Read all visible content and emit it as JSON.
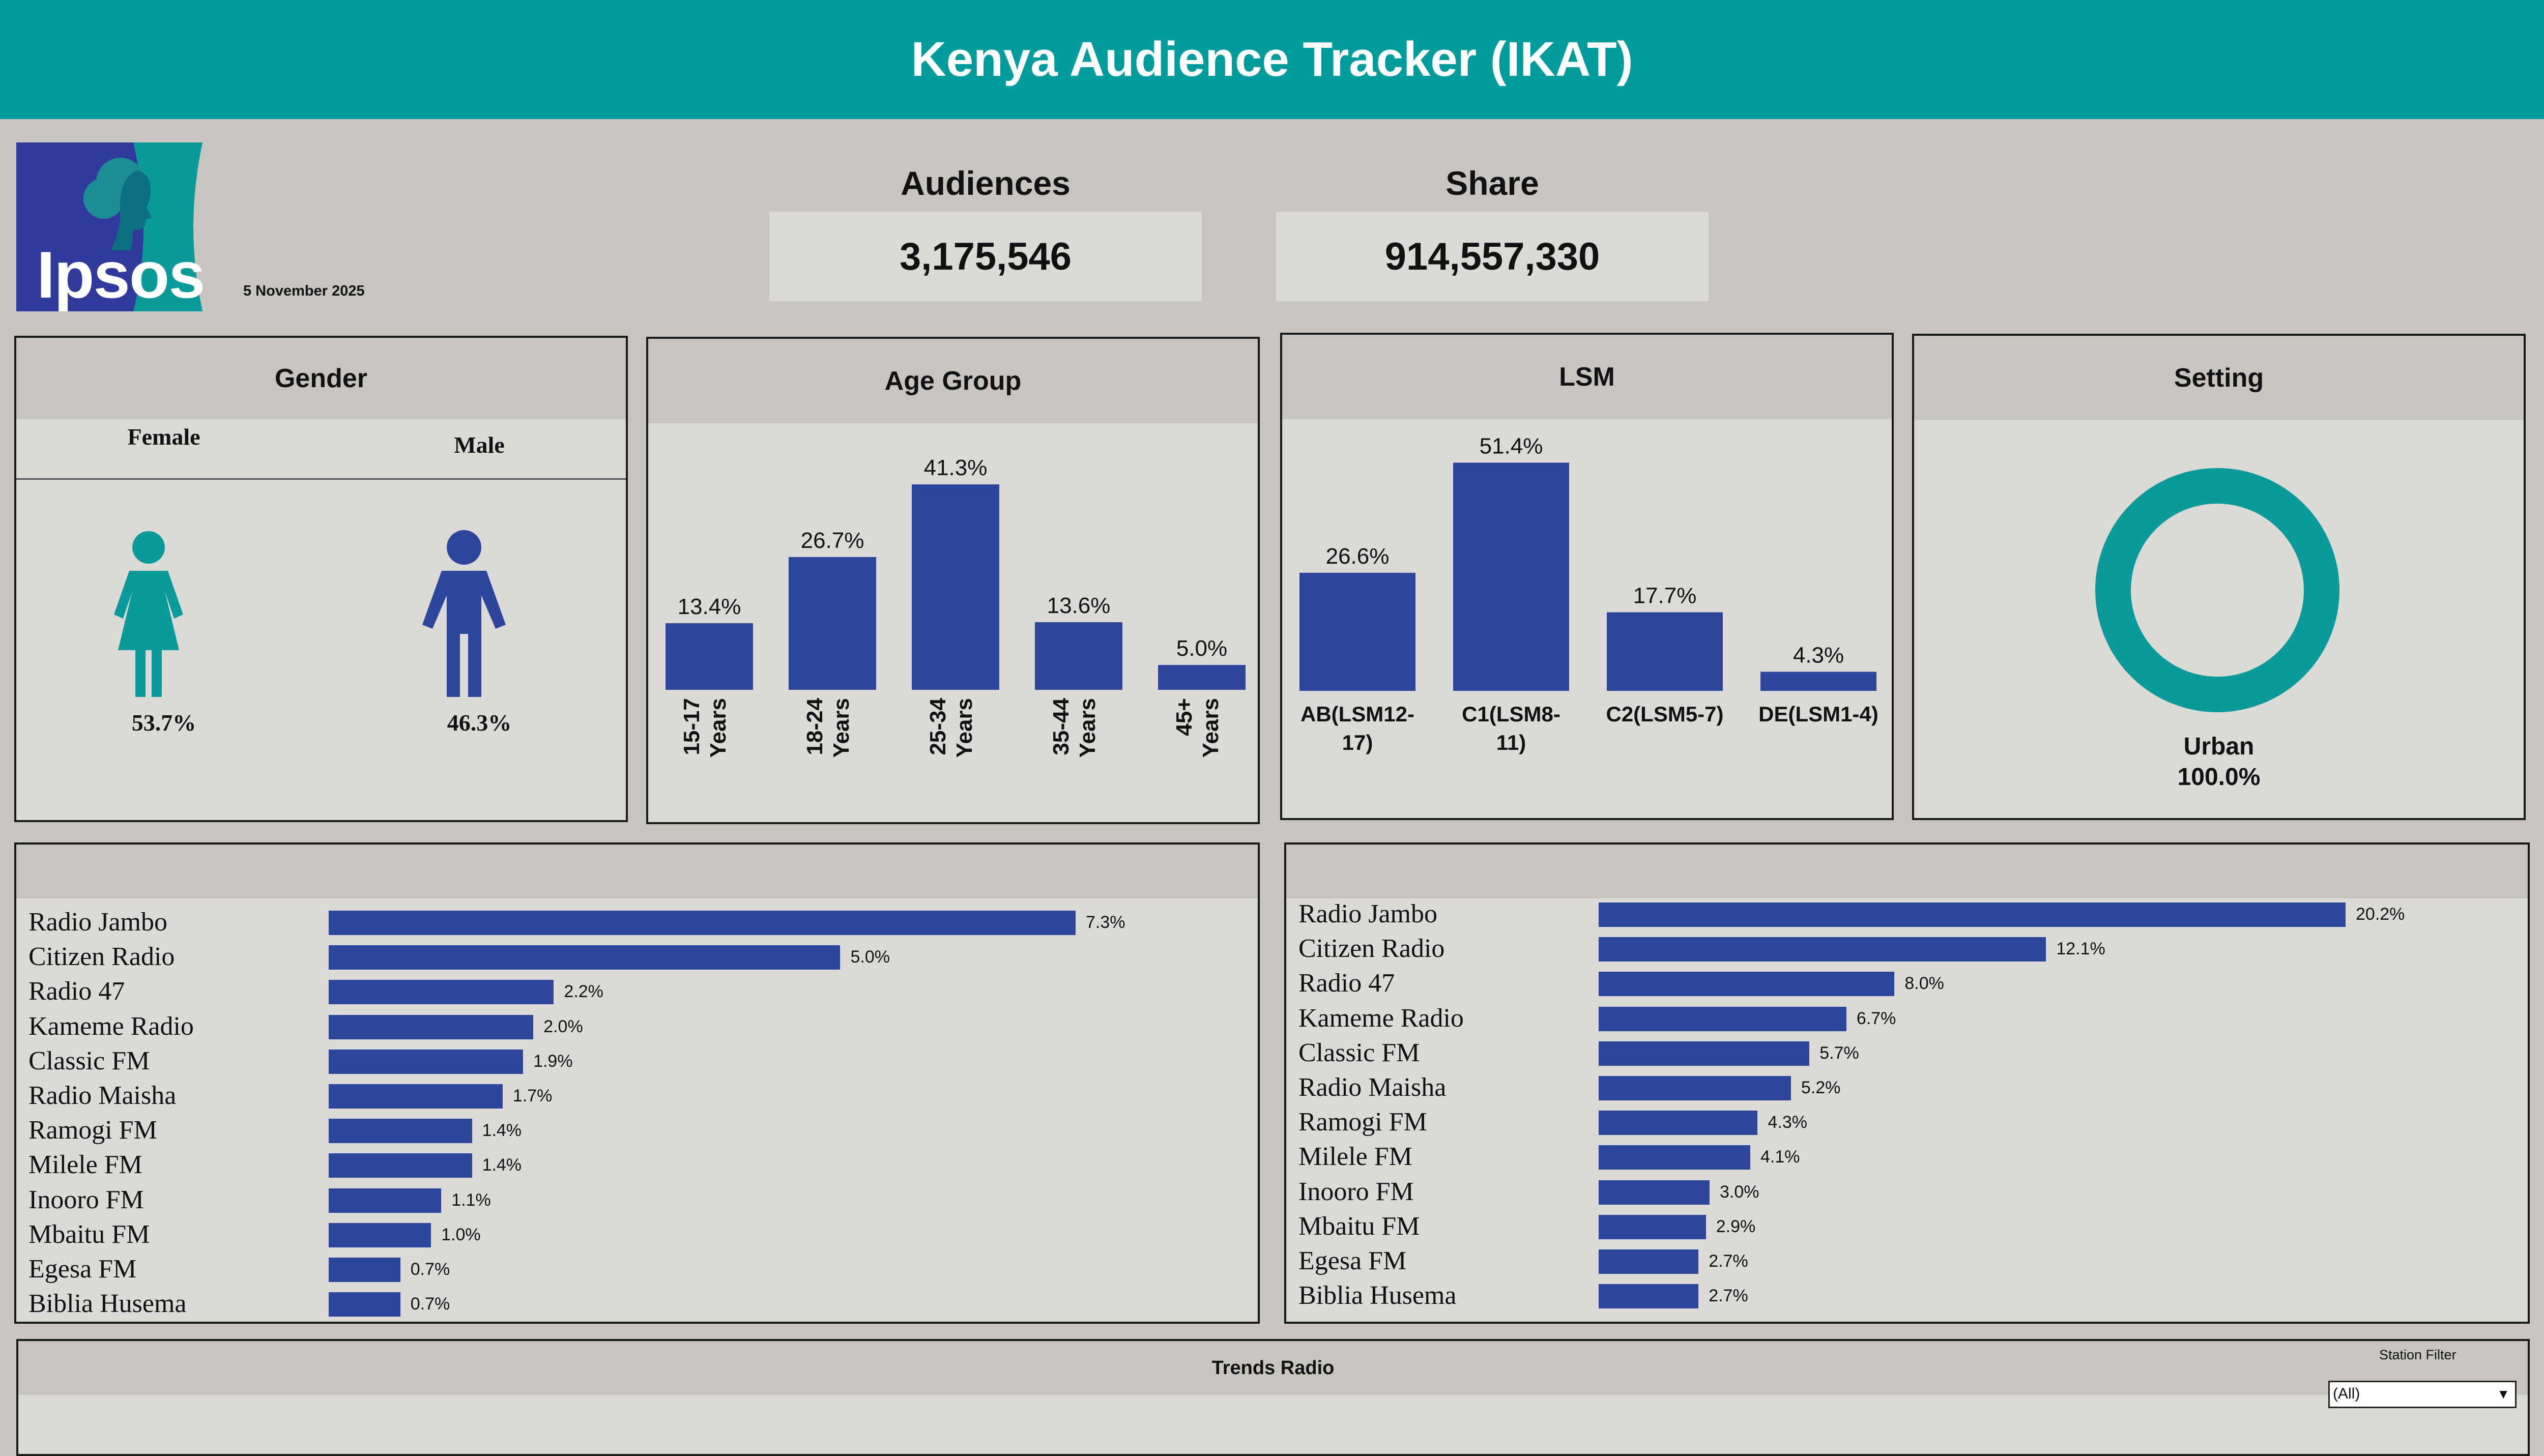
{
  "header": {
    "title": "Kenya Audience Tracker (IKAT)"
  },
  "logo": {
    "text": "Ipsos"
  },
  "report_date": "5 November 2025",
  "kpis": {
    "audiences": {
      "label": "Audiences",
      "value": "3,175,546"
    },
    "share": {
      "label": "Share",
      "value": "914,557,330"
    }
  },
  "gender": {
    "title": "Gender",
    "female": {
      "label": "Female",
      "value": "53.7%"
    },
    "male": {
      "label": "Male",
      "value": "46.3%"
    }
  },
  "setting": {
    "title": "Setting",
    "label": "Urban",
    "value": "100.0%",
    "fraction": 1.0
  },
  "colors": {
    "teal": "#009c9c",
    "bar_blue": "#2e459c",
    "panel_bg": "#dcdad7",
    "page_bg": "#c8c5c1"
  },
  "chart_data": [
    {
      "type": "bar",
      "title": "Age Group",
      "categories": [
        "15-17 Years",
        "18-24 Years",
        "25-34 Years",
        "35-44 Years",
        "45+ Years"
      ],
      "values": [
        13.4,
        26.7,
        41.3,
        13.6,
        5.0
      ],
      "labels": [
        "13.4%",
        "26.7%",
        "41.3%",
        "13.6%",
        "5.0%"
      ],
      "ylim": [
        0,
        45
      ]
    },
    {
      "type": "bar",
      "title": "LSM",
      "categories": [
        "AB(LSM12-17)",
        "C1(LSM8-11)",
        "C2(LSM5-7)",
        "DE(LSM1-4)"
      ],
      "values": [
        26.6,
        51.4,
        17.7,
        4.3
      ],
      "labels": [
        "26.6%",
        "51.4%",
        "17.7%",
        "4.3%"
      ],
      "ylim": [
        0,
        55
      ]
    },
    {
      "type": "bar",
      "orientation": "horizontal",
      "categories": [
        "Radio Jambo",
        "Citizen Radio",
        "Radio 47",
        "Kameme Radio",
        "Classic FM",
        "Radio Maisha",
        "Ramogi FM",
        "Milele FM",
        "Inooro FM",
        "Mbaitu FM",
        "Egesa FM",
        "Biblia Husema"
      ],
      "values": [
        7.3,
        5.0,
        2.2,
        2.0,
        1.9,
        1.7,
        1.4,
        1.4,
        1.1,
        1.0,
        0.7,
        0.7
      ],
      "labels": [
        "7.3%",
        "5.0%",
        "2.2%",
        "2.0%",
        "1.9%",
        "1.7%",
        "1.4%",
        "1.4%",
        "1.1%",
        "1.0%",
        "0.7%",
        "0.7%"
      ]
    },
    {
      "type": "bar",
      "orientation": "horizontal",
      "categories": [
        "Radio Jambo",
        "Citizen Radio",
        "Radio 47",
        "Kameme Radio",
        "Classic FM",
        "Radio Maisha",
        "Ramogi FM",
        "Milele FM",
        "Inooro FM",
        "Mbaitu FM",
        "Egesa FM",
        "Biblia Husema"
      ],
      "values": [
        20.2,
        12.1,
        8.0,
        6.7,
        5.7,
        5.2,
        4.3,
        4.1,
        3.0,
        2.9,
        2.7,
        2.7
      ],
      "labels": [
        "20.2%",
        "12.1%",
        "8.0%",
        "6.7%",
        "5.7%",
        "5.2%",
        "4.3%",
        "4.1%",
        "3.0%",
        "2.9%",
        "2.7%",
        "2.7%"
      ]
    }
  ],
  "trends": {
    "title": "Trends Radio",
    "filter_label": "Station Filter",
    "filter_value": "(All)"
  }
}
